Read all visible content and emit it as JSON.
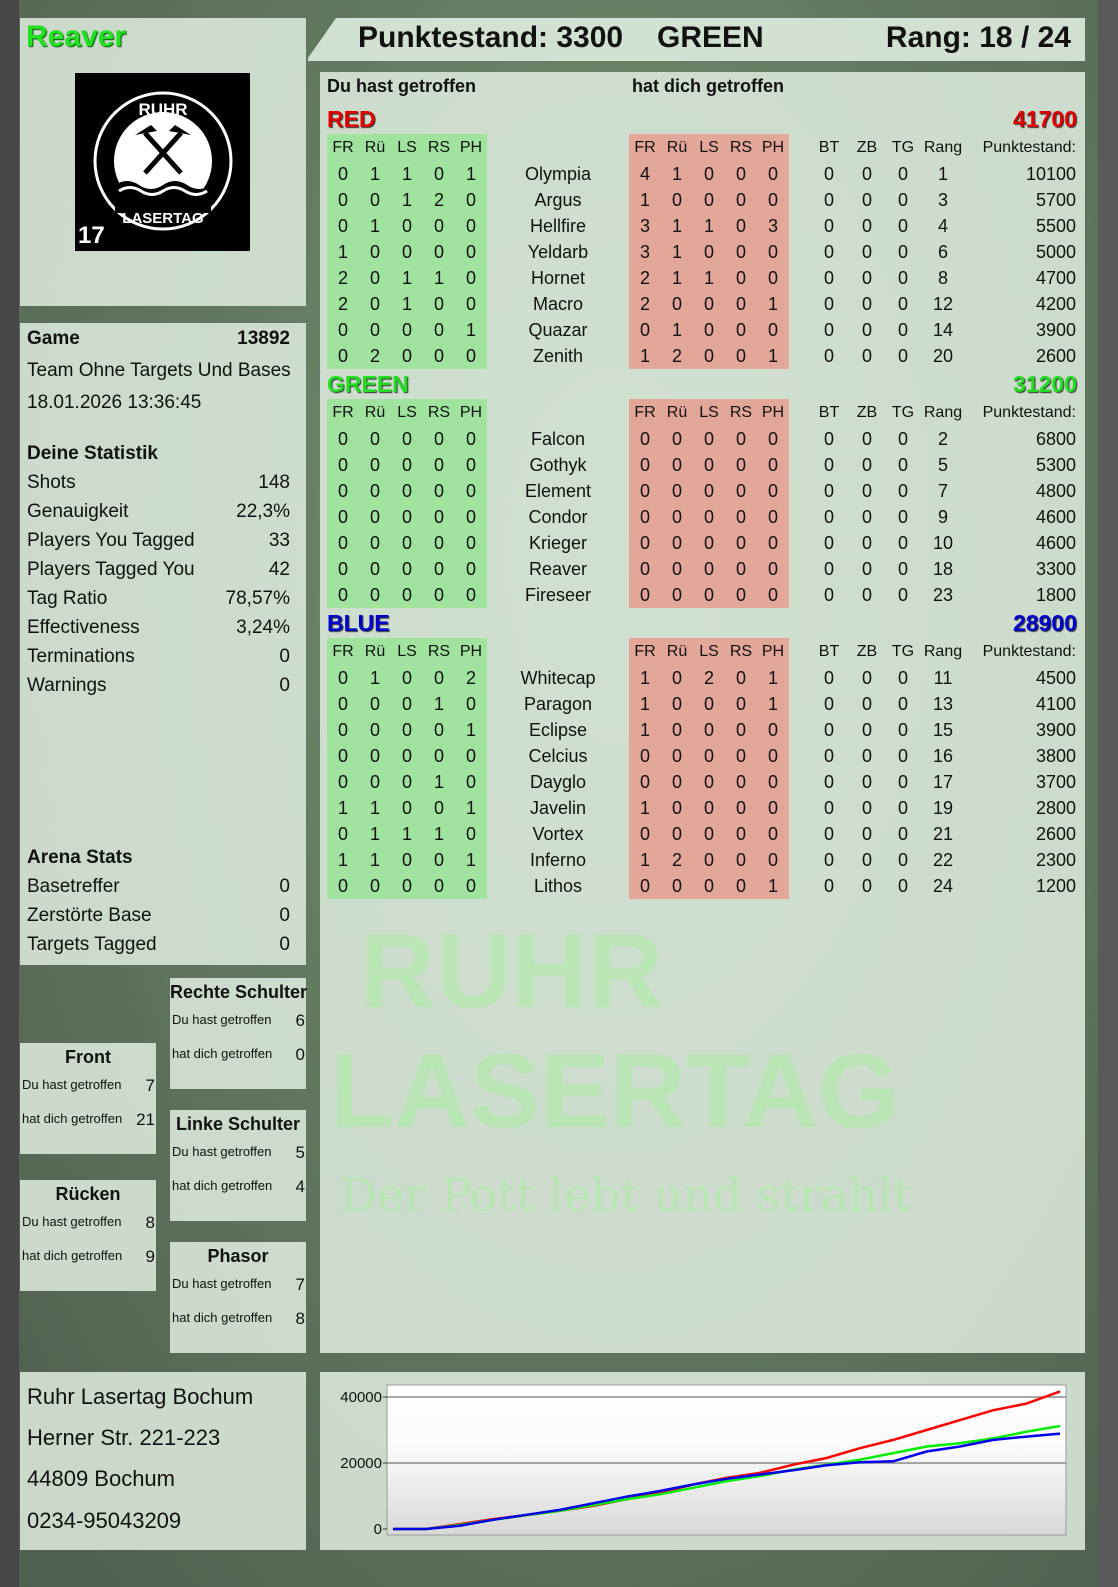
{
  "player": {
    "name": "Reaver",
    "team": "GREEN",
    "score_label": "Punktestand: 3300",
    "rank_label": "Rang: 18 / 24"
  },
  "logo": {
    "top": "RUHR",
    "bottom": "LASERTAG",
    "number": "17"
  },
  "watermark": {
    "line1": "RUHR",
    "line2": "LASERTAG",
    "slogan": "Der Pott lebt und strahlt"
  },
  "game": {
    "label": "Game",
    "id": "13892",
    "mode": "Team Ohne Targets Und Bases",
    "datetime": "18.01.2026 13:36:45"
  },
  "stats": {
    "title": "Deine Statistik",
    "items": [
      {
        "label": "Shots",
        "value": "148"
      },
      {
        "label": "Genauigkeit",
        "value": "22,3%"
      },
      {
        "label": "Players You Tagged",
        "value": "33"
      },
      {
        "label": "Players Tagged You",
        "value": "42"
      },
      {
        "label": "Tag Ratio",
        "value": "78,57%"
      },
      {
        "label": "Effectiveness",
        "value": "3,24%"
      },
      {
        "label": "Terminations",
        "value": "0"
      },
      {
        "label": "Warnings",
        "value": "0"
      }
    ]
  },
  "arena": {
    "title": "Arena Stats",
    "items": [
      {
        "label": "Basetreffer",
        "value": "0"
      },
      {
        "label": "Zerstörte Base",
        "value": "0"
      },
      {
        "label": "Targets Tagged",
        "value": "0"
      }
    ]
  },
  "zones": [
    {
      "title": "Rechte Schulter",
      "hit_label": "Du hast getroffen",
      "hit": "6",
      "got_label": "hat dich getroffen",
      "got": "0"
    },
    {
      "title": "Front",
      "hit_label": "Du hast getroffen",
      "hit": "7",
      "got_label": "hat dich getroffen",
      "got": "21"
    },
    {
      "title": "Linke Schulter",
      "hit_label": "Du hast getroffen",
      "hit": "5",
      "got_label": "hat dich getroffen",
      "got": "4"
    },
    {
      "title": "Rücken",
      "hit_label": "Du hast getroffen",
      "hit": "8",
      "got_label": "hat dich getroffen",
      "got": "9"
    },
    {
      "title": "Phasor",
      "hit_label": "Du hast getroffen",
      "hit": "7",
      "got_label": "hat dich getroffen",
      "got": "8"
    }
  ],
  "address": [
    "Ruhr Lasertag Bochum",
    "Herner Str. 221-223",
    "44809 Bochum",
    "0234-95043209"
  ],
  "table": {
    "you_hit_label": "Du hast getroffen",
    "hit_you_label": "hat dich getroffen",
    "columns": [
      "FR",
      "Rü",
      "LS",
      "RS",
      "PH",
      "FR",
      "Rü",
      "LS",
      "RS",
      "PH",
      "BT",
      "ZB",
      "TG",
      "Rang",
      "Punktestand:"
    ],
    "teams": [
      {
        "name": "RED",
        "score": "41700",
        "color": "#e00000",
        "players": [
          [
            "Olympia",
            [
              0,
              1,
              1,
              0,
              1
            ],
            [
              4,
              1,
              0,
              0,
              0
            ],
            [
              0,
              0,
              0
            ],
            1,
            10100
          ],
          [
            "Argus",
            [
              0,
              0,
              1,
              2,
              0
            ],
            [
              1,
              0,
              0,
              0,
              0
            ],
            [
              0,
              0,
              0
            ],
            3,
            5700
          ],
          [
            "Hellfire",
            [
              0,
              1,
              0,
              0,
              0
            ],
            [
              3,
              1,
              1,
              0,
              3
            ],
            [
              0,
              0,
              0
            ],
            4,
            5500
          ],
          [
            "Yeldarb",
            [
              1,
              0,
              0,
              0,
              0
            ],
            [
              3,
              1,
              0,
              0,
              0
            ],
            [
              0,
              0,
              0
            ],
            6,
            5000
          ],
          [
            "Hornet",
            [
              2,
              0,
              1,
              1,
              0
            ],
            [
              2,
              1,
              1,
              0,
              0
            ],
            [
              0,
              0,
              0
            ],
            8,
            4700
          ],
          [
            "Macro",
            [
              2,
              0,
              1,
              0,
              0
            ],
            [
              2,
              0,
              0,
              0,
              1
            ],
            [
              0,
              0,
              0
            ],
            12,
            4200
          ],
          [
            "Quazar",
            [
              0,
              0,
              0,
              0,
              1
            ],
            [
              0,
              1,
              0,
              0,
              0
            ],
            [
              0,
              0,
              0
            ],
            14,
            3900
          ],
          [
            "Zenith",
            [
              0,
              2,
              0,
              0,
              0
            ],
            [
              1,
              2,
              0,
              0,
              1
            ],
            [
              0,
              0,
              0
            ],
            20,
            2600
          ]
        ]
      },
      {
        "name": "GREEN",
        "score": "31200",
        "color": "#22dd22",
        "players": [
          [
            "Falcon",
            [
              0,
              0,
              0,
              0,
              0
            ],
            [
              0,
              0,
              0,
              0,
              0
            ],
            [
              0,
              0,
              0
            ],
            2,
            6800
          ],
          [
            "Gothyk",
            [
              0,
              0,
              0,
              0,
              0
            ],
            [
              0,
              0,
              0,
              0,
              0
            ],
            [
              0,
              0,
              0
            ],
            5,
            5300
          ],
          [
            "Element",
            [
              0,
              0,
              0,
              0,
              0
            ],
            [
              0,
              0,
              0,
              0,
              0
            ],
            [
              0,
              0,
              0
            ],
            7,
            4800
          ],
          [
            "Condor",
            [
              0,
              0,
              0,
              0,
              0
            ],
            [
              0,
              0,
              0,
              0,
              0
            ],
            [
              0,
              0,
              0
            ],
            9,
            4600
          ],
          [
            "Krieger",
            [
              0,
              0,
              0,
              0,
              0
            ],
            [
              0,
              0,
              0,
              0,
              0
            ],
            [
              0,
              0,
              0
            ],
            10,
            4600
          ],
          [
            "Reaver",
            [
              0,
              0,
              0,
              0,
              0
            ],
            [
              0,
              0,
              0,
              0,
              0
            ],
            [
              0,
              0,
              0
            ],
            18,
            3300
          ],
          [
            "Fireseer",
            [
              0,
              0,
              0,
              0,
              0
            ],
            [
              0,
              0,
              0,
              0,
              0
            ],
            [
              0,
              0,
              0
            ],
            23,
            1800
          ]
        ]
      },
      {
        "name": "BLUE",
        "score": "28900",
        "color": "#0000cc",
        "players": [
          [
            "Whitecap",
            [
              0,
              1,
              0,
              0,
              2
            ],
            [
              1,
              0,
              2,
              0,
              1
            ],
            [
              0,
              0,
              0
            ],
            11,
            4500
          ],
          [
            "Paragon",
            [
              0,
              0,
              0,
              1,
              0
            ],
            [
              1,
              0,
              0,
              0,
              1
            ],
            [
              0,
              0,
              0
            ],
            13,
            4100
          ],
          [
            "Eclipse",
            [
              0,
              0,
              0,
              0,
              1
            ],
            [
              1,
              0,
              0,
              0,
              0
            ],
            [
              0,
              0,
              0
            ],
            15,
            3900
          ],
          [
            "Celcius",
            [
              0,
              0,
              0,
              0,
              0
            ],
            [
              0,
              0,
              0,
              0,
              0
            ],
            [
              0,
              0,
              0
            ],
            16,
            3800
          ],
          [
            "Dayglo",
            [
              0,
              0,
              0,
              1,
              0
            ],
            [
              0,
              0,
              0,
              0,
              0
            ],
            [
              0,
              0,
              0
            ],
            17,
            3700
          ],
          [
            "Javelin",
            [
              1,
              1,
              0,
              0,
              1
            ],
            [
              1,
              0,
              0,
              0,
              0
            ],
            [
              0,
              0,
              0
            ],
            19,
            2800
          ],
          [
            "Vortex",
            [
              0,
              1,
              1,
              1,
              0
            ],
            [
              0,
              0,
              0,
              0,
              0
            ],
            [
              0,
              0,
              0
            ],
            21,
            2600
          ],
          [
            "Inferno",
            [
              1,
              1,
              0,
              0,
              1
            ],
            [
              1,
              2,
              0,
              0,
              0
            ],
            [
              0,
              0,
              0
            ],
            22,
            2300
          ],
          [
            "Lithos",
            [
              0,
              0,
              0,
              0,
              0
            ],
            [
              0,
              0,
              0,
              0,
              1
            ],
            [
              0,
              0,
              0
            ],
            24,
            1200
          ]
        ]
      }
    ]
  },
  "chart_data": {
    "type": "line",
    "yticks": [
      0,
      20000,
      40000
    ],
    "ylim": [
      0,
      43600
    ],
    "grid": true,
    "series": [
      {
        "color": "#ff0000",
        "values": [
          0,
          0,
          1500,
          3000,
          4200,
          5500,
          7000,
          9000,
          11000,
          13500,
          15500,
          17000,
          19500,
          21500,
          24500,
          27000,
          30000,
          33000,
          36000,
          38000,
          41700
        ]
      },
      {
        "color": "#00ee00",
        "values": [
          0,
          0,
          1200,
          2800,
          4200,
          5500,
          7200,
          9000,
          10500,
          12500,
          14500,
          16000,
          18000,
          19500,
          21000,
          23000,
          25000,
          26000,
          27500,
          29500,
          31200
        ]
      },
      {
        "color": "#0000ee",
        "values": [
          0,
          0,
          1000,
          2800,
          4300,
          5800,
          7800,
          9800,
          11500,
          13500,
          15200,
          16500,
          17800,
          19300,
          20200,
          20500,
          23500,
          25000,
          27000,
          28000,
          28900
        ]
      }
    ]
  }
}
